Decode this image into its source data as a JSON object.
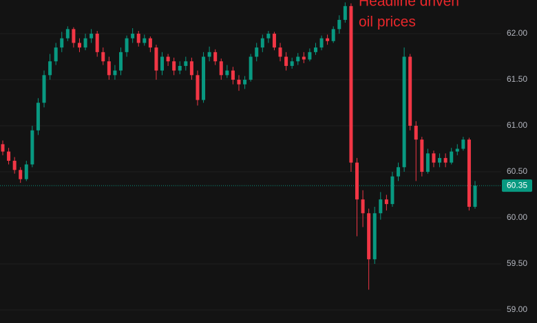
{
  "chart_data": {
    "type": "candlestick",
    "annotation": [
      "Headline driven",
      "oil prices"
    ],
    "annotation_color": "#e8272b",
    "up_color": "#089981",
    "down_color": "#f23645",
    "grid": true,
    "ylim": [
      58.858,
      62.366
    ],
    "yticks": [
      {
        "value": 59,
        "label": "59.00"
      },
      {
        "value": 59.5,
        "label": "59.50"
      },
      {
        "value": 60,
        "label": "60.00"
      },
      {
        "value": 60.5,
        "label": "60.50"
      },
      {
        "value": 61,
        "label": "61.00"
      },
      {
        "value": 61.5,
        "label": "61.50"
      },
      {
        "value": 62,
        "label": "62.00"
      }
    ],
    "current_price": 60.35,
    "open": [
      60.8,
      60.72,
      60.62,
      60.52,
      60.42,
      60.58,
      60.95,
      61.25,
      61.55,
      61.7,
      61.85,
      61.95,
      62.05,
      61.9,
      61.85,
      61.95,
      62.0,
      61.8,
      61.7,
      61.55,
      61.6,
      61.8,
      61.95,
      62.0,
      61.9,
      61.95,
      61.85,
      61.6,
      61.75,
      61.7,
      61.6,
      61.65,
      61.7,
      61.55,
      61.28,
      61.75,
      61.8,
      61.7,
      61.55,
      61.6,
      61.5,
      61.45,
      61.5,
      61.75,
      61.85,
      61.95,
      62.0,
      61.85,
      61.75,
      61.65,
      61.7,
      61.75,
      61.72,
      61.8,
      61.85,
      61.95,
      61.92,
      62.05,
      62.15,
      62.3,
      60.6,
      60.2,
      60.05,
      59.55,
      60.05,
      60.2,
      60.15,
      60.45,
      60.55,
      61.75,
      61.0,
      60.85,
      60.5,
      60.7,
      60.6,
      60.65,
      60.6,
      60.72,
      60.75,
      60.85,
      60.12
    ],
    "high": [
      60.84,
      60.76,
      60.66,
      60.55,
      60.62,
      61.0,
      61.3,
      61.6,
      61.78,
      61.9,
      62.02,
      62.08,
      62.07,
      61.95,
      62.0,
      62.05,
      62.03,
      61.85,
      61.75,
      61.66,
      61.85,
      61.98,
      62.06,
      62.03,
      61.99,
      61.97,
      61.88,
      61.8,
      61.78,
      61.74,
      61.7,
      61.75,
      61.74,
      61.6,
      61.8,
      61.86,
      61.83,
      61.73,
      61.66,
      61.64,
      61.55,
      61.54,
      61.78,
      61.9,
      61.99,
      62.03,
      62.02,
      61.9,
      61.8,
      61.74,
      61.79,
      61.8,
      61.84,
      61.9,
      61.98,
      61.99,
      62.08,
      62.2,
      62.34,
      62.33,
      60.65,
      60.3,
      60.1,
      60.12,
      60.28,
      60.25,
      60.5,
      60.6,
      61.85,
      61.78,
      61.05,
      60.88,
      60.75,
      60.73,
      60.7,
      60.7,
      60.76,
      60.8,
      60.88,
      60.87,
      60.4
    ],
    "low": [
      60.68,
      60.58,
      60.48,
      60.38,
      60.4,
      60.55,
      60.9,
      61.2,
      61.5,
      61.66,
      61.8,
      61.92,
      61.85,
      61.8,
      61.82,
      61.9,
      61.75,
      61.66,
      61.5,
      61.5,
      61.55,
      61.75,
      61.9,
      61.86,
      61.87,
      61.8,
      61.5,
      61.55,
      61.65,
      61.55,
      61.56,
      61.6,
      61.5,
      61.22,
      61.25,
      61.7,
      61.66,
      61.5,
      61.52,
      61.45,
      61.38,
      61.4,
      61.48,
      61.7,
      61.8,
      61.9,
      61.82,
      61.7,
      61.6,
      61.62,
      61.66,
      61.68,
      61.7,
      61.77,
      61.82,
      61.88,
      61.9,
      62.0,
      62.12,
      60.5,
      59.8,
      59.9,
      59.22,
      59.5,
      59.98,
      60.08,
      60.12,
      60.4,
      60.5,
      60.95,
      60.4,
      60.45,
      60.48,
      60.55,
      60.55,
      60.55,
      60.58,
      60.68,
      60.73,
      60.08,
      60.1
    ],
    "close": [
      60.72,
      60.62,
      60.52,
      60.42,
      60.58,
      60.95,
      61.25,
      61.55,
      61.7,
      61.85,
      61.95,
      62.05,
      61.9,
      61.85,
      61.95,
      62.0,
      61.8,
      61.7,
      61.55,
      61.6,
      61.8,
      61.95,
      62.0,
      61.9,
      61.95,
      61.85,
      61.6,
      61.75,
      61.7,
      61.6,
      61.65,
      61.7,
      61.55,
      61.28,
      61.75,
      61.8,
      61.7,
      61.55,
      61.6,
      61.5,
      61.45,
      61.5,
      61.75,
      61.85,
      61.95,
      62.0,
      61.85,
      61.75,
      61.65,
      61.7,
      61.75,
      61.72,
      61.8,
      61.85,
      61.95,
      61.92,
      62.05,
      62.15,
      62.3,
      60.6,
      60.2,
      60.05,
      59.55,
      60.05,
      60.2,
      60.15,
      60.45,
      60.55,
      61.75,
      61.0,
      60.85,
      60.5,
      60.7,
      60.6,
      60.65,
      60.6,
      60.72,
      60.75,
      60.85,
      60.12,
      60.35
    ]
  }
}
